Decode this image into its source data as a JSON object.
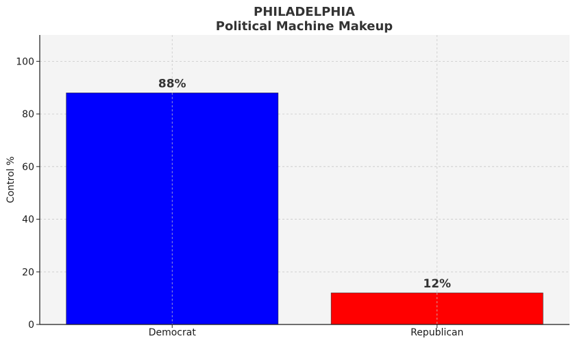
{
  "chart_data": {
    "type": "bar",
    "title": "PHILADELPHIA",
    "subtitle": "Political Machine Makeup",
    "xlabel": "",
    "ylabel": "Control %",
    "categories": [
      "Democrat",
      "Republican"
    ],
    "values": [
      88,
      12
    ],
    "data_labels": [
      "88%",
      "12%"
    ],
    "colors": [
      "#0000ff",
      "#ff0000"
    ],
    "ylim": [
      0,
      110
    ],
    "yticks": [
      0,
      20,
      40,
      60,
      80,
      100
    ],
    "grid": true,
    "plot_background": "#f4f4f4"
  }
}
